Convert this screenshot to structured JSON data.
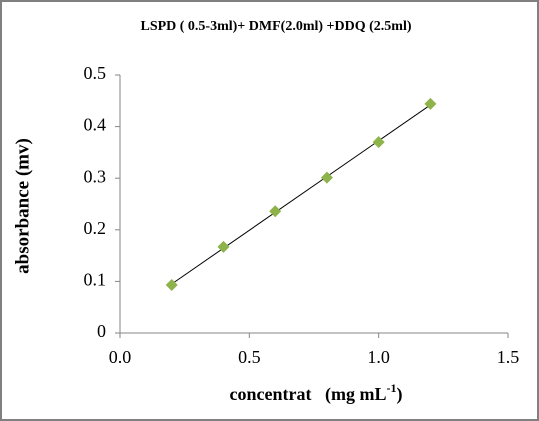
{
  "chart_data": {
    "type": "scatter",
    "title": "LSPD ( 0.5-3ml)+ DMF(2.0ml) +DDQ (2.5ml)",
    "xlabel": "concentrat   (mg mL",
    "xlabel_sup": "-1",
    "xlabel_end": ")",
    "ylabel": "absorbance (mv)",
    "series": [
      {
        "color": "#8db34a",
        "x": [
          0.2,
          0.4,
          0.6,
          0.8,
          1.0,
          1.2
        ],
        "values": [
          0.093,
          0.167,
          0.236,
          0.301,
          0.37,
          0.444
        ]
      }
    ],
    "trendline": true,
    "xlim": [
      0,
      1.5
    ],
    "xticks": [
      {
        "value": 0,
        "label": "0.0"
      },
      {
        "value": 0.5,
        "label": "0.5"
      },
      {
        "value": 1,
        "label": "1.0"
      },
      {
        "value": 1.5,
        "label": "1.5"
      }
    ],
    "ylim": [
      0,
      0.5
    ],
    "yticks": [
      0,
      0.1,
      0.2,
      0.3,
      0.4,
      0.5
    ]
  }
}
